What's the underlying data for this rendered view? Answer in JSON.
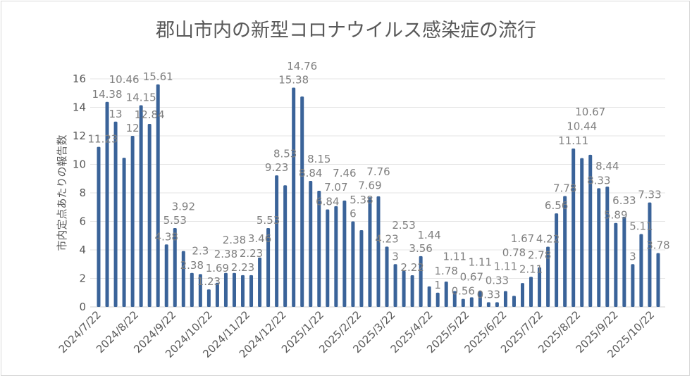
{
  "chart_data": {
    "type": "bar",
    "title": "郡山市内の新型コロナウイルス感染症の流行",
    "xlabel": "",
    "ylabel": "市内定点あたりの報告数",
    "ylim": [
      0,
      16
    ],
    "yticks": [
      0,
      2,
      4,
      6,
      8,
      10,
      12,
      14,
      16
    ],
    "grid": true,
    "legend": "none",
    "bar_color": "#3a6399",
    "start_date": "2024/7/22",
    "interval_days": 7,
    "xtick_labels": [
      "2024/7/22",
      "2024/8/22",
      "2024/9/22",
      "2024/10/22",
      "2024/11/22",
      "2024/12/22",
      "2025/1/22",
      "2025/2/22",
      "2025/3/22",
      "2025/4/22",
      "2025/5/22",
      "2025/6/22",
      "2025/7/22",
      "2025/8/22",
      "2025/9/22",
      "2025/10/22"
    ],
    "values": [
      11.23,
      14.38,
      13,
      10.46,
      12,
      14.15,
      12.84,
      15.61,
      4.38,
      5.53,
      3.92,
      2.38,
      2.3,
      1.23,
      1.69,
      2.38,
      2.38,
      2.23,
      2.23,
      3.46,
      5.53,
      9.23,
      8.53,
      15.38,
      14.76,
      8.84,
      8.15,
      6.84,
      7.07,
      7.46,
      6,
      5.38,
      7.69,
      7.76,
      4.23,
      3,
      2.53,
      2.22,
      3.56,
      1.44,
      1,
      1.78,
      1.11,
      0.56,
      0.67,
      1.11,
      0.33,
      0.33,
      1.11,
      0.78,
      1.67,
      2.11,
      2.78,
      4.22,
      6.56,
      7.78,
      11.11,
      10.44,
      10.67,
      8.33,
      8.44,
      5.89,
      6.33,
      3,
      5.11,
      7.33,
      3.78
    ]
  }
}
